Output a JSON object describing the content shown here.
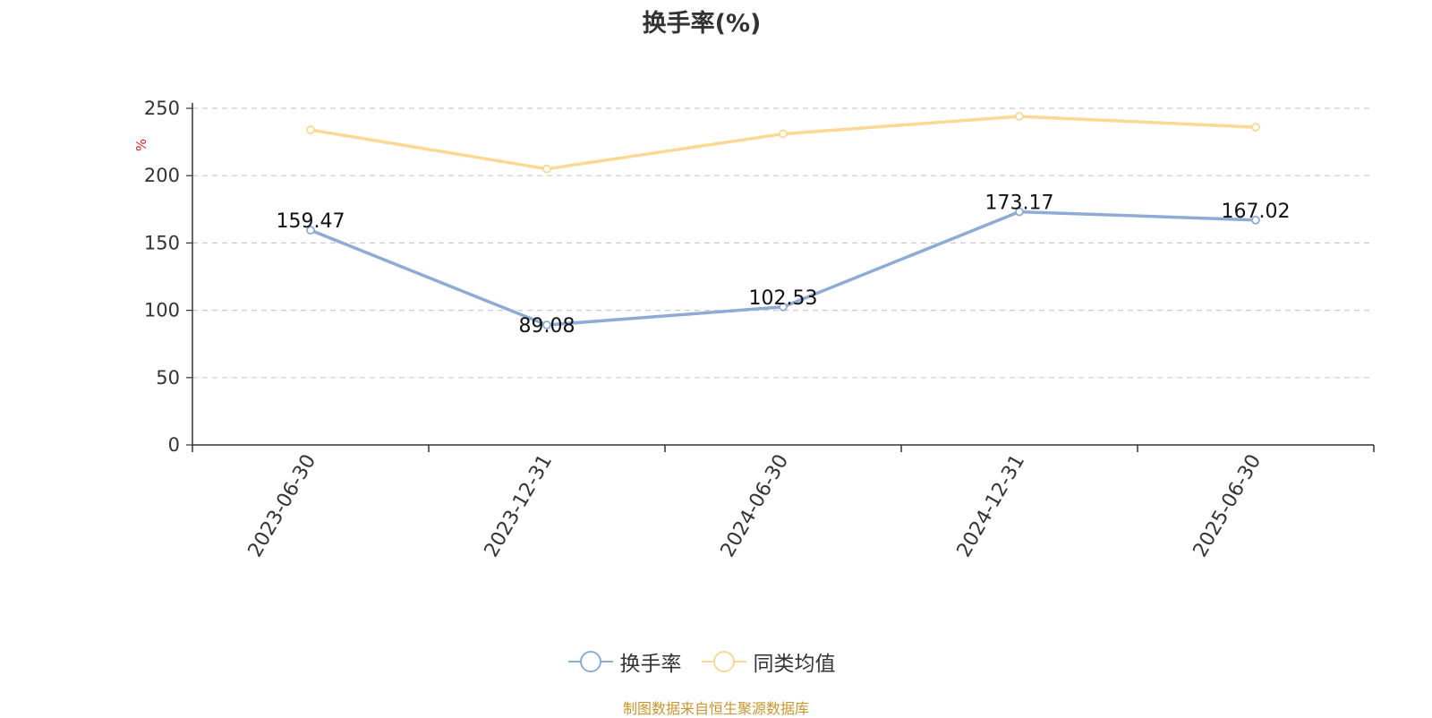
{
  "colors": {
    "series1": "#8eabd5",
    "series2": "#fdd794",
    "unit": "#e02020",
    "source": "#c9962d"
  },
  "chart_data": {
    "type": "line",
    "title": "换手率(%)",
    "ylabel": "%",
    "ylim": [
      0,
      250
    ],
    "yticks": [
      0,
      50,
      100,
      150,
      200,
      250
    ],
    "grid": true,
    "legend_position": "bottom",
    "categories": [
      "2023-06-30",
      "2023-12-31",
      "2024-06-30",
      "2024-12-31",
      "2025-06-30"
    ],
    "series": [
      {
        "name": "换手率",
        "values": [
          159.47,
          89.08,
          102.53,
          173.17,
          167.02
        ],
        "labels": [
          "159.47",
          "89.08",
          "102.53",
          "173.17",
          "167.02"
        ]
      },
      {
        "name": "同类均值",
        "values": [
          234,
          205,
          231,
          244,
          236
        ]
      }
    ]
  },
  "source_text": "制图数据来自恒生聚源数据库"
}
